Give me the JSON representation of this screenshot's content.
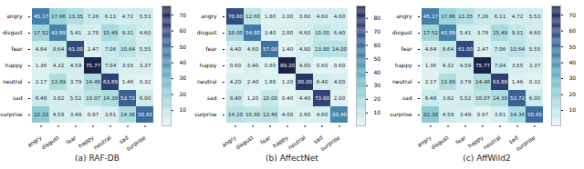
{
  "chart_data": [
    {
      "type": "heatmap",
      "title": "(a) RAF-DB",
      "x_categories": [
        "angry",
        "disgust",
        "fear",
        "happy",
        "neutral",
        "sad",
        "surprise"
      ],
      "y_categories": [
        "angry",
        "disgust",
        "fear",
        "happy",
        "neutral",
        "sad",
        "surprise"
      ],
      "cells": [
        [
          45.17,
          17.86,
          13.35,
          7.26,
          6.11,
          4.72,
          5.53
        ],
        [
          17.52,
          43.89,
          5.41,
          3.78,
          15.49,
          9.31,
          4.6
        ],
        [
          4.64,
          8.64,
          61.0,
          2.47,
          7.06,
          10.64,
          5.55
        ],
        [
          1.36,
          4.32,
          4.59,
          75.77,
          7.04,
          3.55,
          3.37
        ],
        [
          2.17,
          13.89,
          3.79,
          14.48,
          63.89,
          1.46,
          0.32
        ],
        [
          6.48,
          3.82,
          5.52,
          10.07,
          14.39,
          53.72,
          6.0
        ],
        [
          22.33,
          4.59,
          3.49,
          0.97,
          3.61,
          14.36,
          50.65
        ]
      ],
      "value_labels": [
        [
          "45.17",
          "17.86",
          "13.35",
          "7.26",
          "6.11",
          "4.72",
          "5.53"
        ],
        [
          "17.52",
          "43.89",
          "5.41",
          "3.78",
          "15.49",
          "9.31",
          "4.60"
        ],
        [
          "4.64",
          "8.64",
          "61.00",
          "2.47",
          "7.06",
          "10.64",
          "5.55"
        ],
        [
          "1.36",
          "4.32",
          "4.59",
          "75.77",
          "7.04",
          "3.55",
          "3.37"
        ],
        [
          "2.17",
          "13.89",
          "3.79",
          "14.48",
          "63.89",
          "1.46",
          "0.32"
        ],
        [
          "6.48",
          "3.82",
          "5.52",
          "10.07",
          "14.39",
          "53.72",
          "6.00"
        ],
        [
          "22.33",
          "4.59",
          "3.49",
          "0.97",
          "3.61",
          "14.36",
          "50.65"
        ]
      ],
      "data_labels": true,
      "colorbar_range": [
        0.32,
        75.77
      ],
      "colorbar_ticks": [
        10,
        20,
        30,
        40,
        50,
        60,
        70
      ]
    },
    {
      "type": "heatmap",
      "title": "(b) AffectNet",
      "x_categories": [
        "angry",
        "disgust",
        "fear",
        "happy",
        "neutral",
        "sad",
        "surprise"
      ],
      "y_categories": [
        "angry",
        "disgust",
        "fear",
        "happy",
        "neutral",
        "sad",
        "surprise"
      ],
      "cells": [
        [
          70.8,
          12.6,
          1.8,
          2.0,
          3.6,
          4.6,
          4.6
        ],
        [
          18.0,
          54.8,
          3.4,
          2.8,
          4.6,
          10.0,
          6.4
        ],
        [
          4.4,
          4.6,
          57.0,
          1.4,
          4.8,
          13.8,
          14.0
        ],
        [
          0.6,
          3.4,
          0.8,
          89.2,
          4.8,
          0.6,
          0.6
        ],
        [
          4.2,
          2.4,
          1.8,
          1.2,
          80.0,
          6.4,
          4.0
        ],
        [
          8.4,
          1.2,
          10.0,
          0.4,
          4.4,
          73.6,
          2.0
        ],
        [
          14.2,
          10.8,
          13.4,
          4.0,
          2.6,
          4.6,
          50.4
        ]
      ],
      "value_labels": [
        [
          "70.80",
          "12.60",
          "1.80",
          "2.00",
          "3.60",
          "4.60",
          "4.60"
        ],
        [
          "18.00",
          "54.80",
          "3.40",
          "2.80",
          "4.60",
          "10.00",
          "6.40"
        ],
        [
          "4.40",
          "4.60",
          "57.00",
          "1.40",
          "4.80",
          "13.80",
          "14.00"
        ],
        [
          "0.60",
          "3.40",
          "0.80",
          "89.20",
          "4.80",
          "0.60",
          "0.60"
        ],
        [
          "4.20",
          "2.40",
          "1.80",
          "1.20",
          "80.00",
          "6.40",
          "4.00"
        ],
        [
          "8.40",
          "1.20",
          "10.00",
          "0.40",
          "4.40",
          "73.60",
          "2.00"
        ],
        [
          "14.20",
          "10.80",
          "13.40",
          "4.00",
          "2.60",
          "4.60",
          "50.40"
        ]
      ],
      "data_labels": true,
      "colorbar_range": [
        0.4,
        89.2
      ],
      "colorbar_ticks": [
        10,
        20,
        30,
        40,
        50,
        60,
        70,
        80
      ]
    },
    {
      "type": "heatmap",
      "title": "(c) AffWild2",
      "x_categories": [
        "angry",
        "disgust",
        "fear",
        "happy",
        "neutral",
        "sad",
        "surprise"
      ],
      "y_categories": [
        "angry",
        "disgust",
        "fear",
        "happy",
        "neutral",
        "sad",
        "surprise"
      ],
      "cells": [
        [
          45.17,
          17.86,
          13.35,
          7.26,
          6.11,
          4.72,
          5.53
        ],
        [
          17.52,
          43.89,
          5.41,
          3.78,
          15.49,
          9.31,
          4.6
        ],
        [
          4.64,
          8.64,
          61.0,
          2.47,
          7.06,
          10.64,
          5.55
        ],
        [
          1.36,
          4.32,
          4.59,
          75.77,
          7.04,
          3.55,
          3.37
        ],
        [
          2.17,
          13.89,
          3.79,
          14.48,
          63.89,
          1.46,
          0.32
        ],
        [
          6.48,
          3.82,
          5.52,
          10.07,
          14.39,
          53.72,
          6.0
        ],
        [
          22.33,
          4.59,
          3.49,
          0.97,
          3.61,
          14.36,
          50.65
        ]
      ],
      "value_labels": [
        [
          "45.17",
          "17.86",
          "13.35",
          "7.26",
          "6.11",
          "4.72",
          "5.53"
        ],
        [
          "17.52",
          "43.89",
          "5.41",
          "3.78",
          "15.49",
          "9.31",
          "4.60"
        ],
        [
          "4.64",
          "8.64",
          "61.00",
          "2.47",
          "7.06",
          "10.64",
          "5.55"
        ],
        [
          "1.36",
          "4.32",
          "4.59",
          "75.77",
          "7.04",
          "3.55",
          "3.37"
        ],
        [
          "2.17",
          "13.89",
          "3.79",
          "14.48",
          "63.89",
          "1.46",
          "0.32"
        ],
        [
          "6.48",
          "3.82",
          "5.52",
          "10.07",
          "14.39",
          "53.72",
          "6.00"
        ],
        [
          "22.33",
          "4.59",
          "3.49",
          "0.97",
          "3.61",
          "14.36",
          "50.65"
        ]
      ],
      "data_labels": true,
      "colorbar_range": [
        0.32,
        75.77
      ],
      "colorbar_ticks": [
        10,
        20,
        30,
        40,
        50,
        60,
        70
      ]
    }
  ]
}
